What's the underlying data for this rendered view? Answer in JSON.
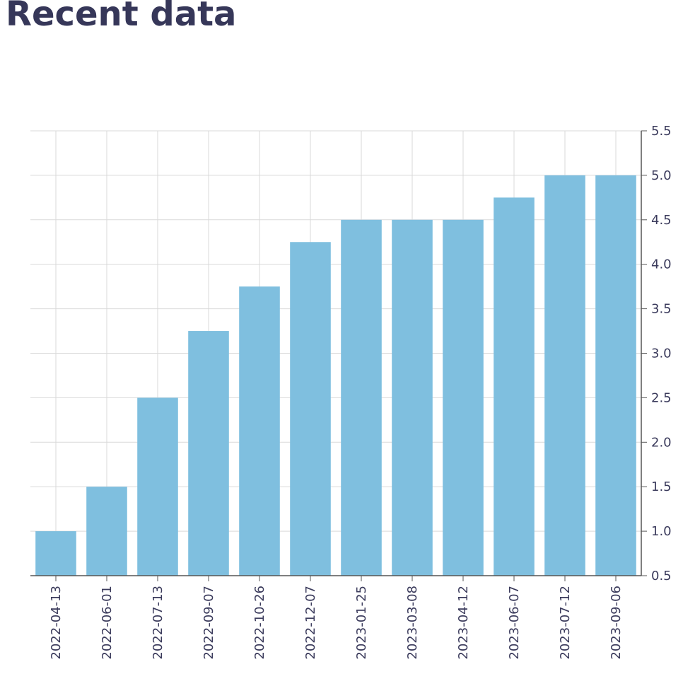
{
  "page": {
    "title": "Recent data"
  },
  "chart_data": {
    "type": "bar",
    "categories": [
      "2022-04-13",
      "2022-06-01",
      "2022-07-13",
      "2022-09-07",
      "2022-10-26",
      "2022-12-07",
      "2023-01-25",
      "2023-03-08",
      "2023-04-12",
      "2023-06-07",
      "2023-07-12",
      "2023-09-06"
    ],
    "values": [
      1.0,
      1.5,
      2.5,
      3.25,
      3.75,
      4.25,
      4.5,
      4.5,
      4.5,
      4.75,
      5.0,
      5.0
    ],
    "title": "",
    "xlabel": "",
    "ylabel": "",
    "ylim": [
      0.5,
      5.5
    ],
    "yticks": [
      "0.5",
      "1.0",
      "1.5",
      "2.0",
      "2.5",
      "3.0",
      "3.5",
      "4.0",
      "4.5",
      "5.0",
      "5.5"
    ],
    "y_axis_side": "right",
    "grid": true,
    "bar_color": "#7fbfdf",
    "grid_color": "#d9d9d9",
    "axis_color": "#555555"
  }
}
